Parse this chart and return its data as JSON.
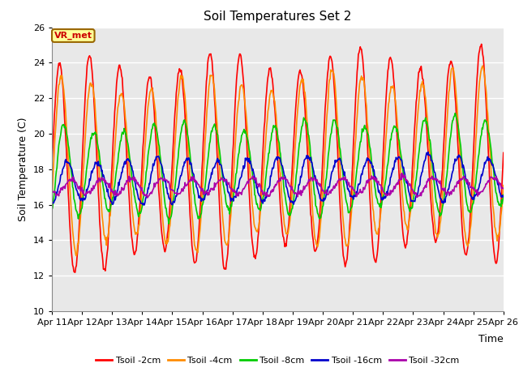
{
  "title": "Soil Temperatures Set 2",
  "xlabel": "Time",
  "ylabel": "Soil Temperature (C)",
  "ylim": [
    10,
    26
  ],
  "xlim": [
    0,
    15
  ],
  "xtick_labels": [
    "Apr 11",
    "Apr 12",
    "Apr 13",
    "Apr 14",
    "Apr 15",
    "Apr 16",
    "Apr 17",
    "Apr 18",
    "Apr 19",
    "Apr 20",
    "Apr 21",
    "Apr 22",
    "Apr 23",
    "Apr 24",
    "Apr 25",
    "Apr 26"
  ],
  "annotation_text": "VR_met",
  "annotation_fg": "#CC0000",
  "annotation_bg": "#FFFF99",
  "annotation_edge": "#996600",
  "series": [
    {
      "label": "Tsoil -2cm",
      "color": "#FF0000",
      "amplitude": 5.5,
      "mean": 18.2,
      "phase": 0.0,
      "trend": 0.05
    },
    {
      "label": "Tsoil -4cm",
      "color": "#FF8C00",
      "amplitude": 4.5,
      "mean": 18.2,
      "phase": 0.35,
      "trend": 0.04
    },
    {
      "label": "Tsoil -8cm",
      "color": "#00CC00",
      "amplitude": 2.5,
      "mean": 17.8,
      "phase": 0.9,
      "trend": 0.03
    },
    {
      "label": "Tsoil -16cm",
      "color": "#0000CC",
      "amplitude": 1.2,
      "mean": 17.3,
      "phase": 1.6,
      "trend": 0.015
    },
    {
      "label": "Tsoil -32cm",
      "color": "#AA00AA",
      "amplitude": 0.45,
      "mean": 17.0,
      "phase": 2.6,
      "trend": 0.005
    }
  ],
  "background_color": "#E8E8E8",
  "grid_color": "#FFFFFF",
  "title_fontsize": 11,
  "axis_label_fontsize": 9,
  "tick_fontsize": 8
}
